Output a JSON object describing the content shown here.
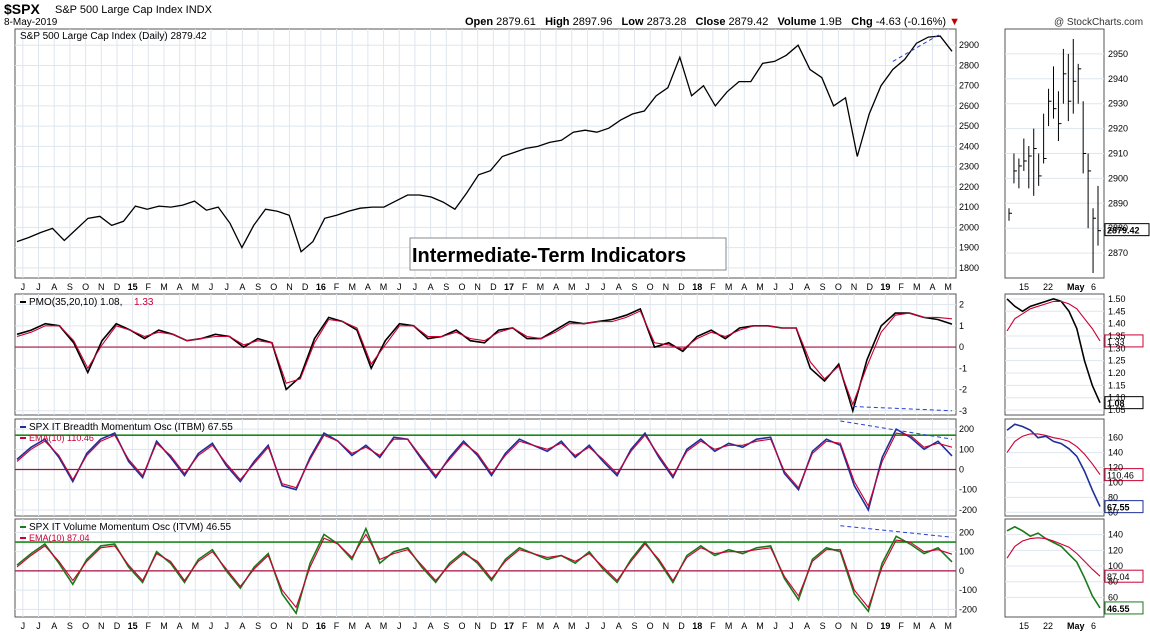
{
  "header": {
    "symbol": "$SPX",
    "name": "S&P 500 Large Cap Index INDX",
    "date": "8-May-2019",
    "brand": "@ StockCharts.com",
    "quote": {
      "open_label": "Open",
      "open": "2879.61",
      "high_label": "High",
      "high": "2897.96",
      "low_label": "Low",
      "low": "2873.28",
      "close_label": "Close",
      "close": "2879.42",
      "volume_label": "Volume",
      "volume": "1.9B",
      "chg_label": "Chg",
      "chg": "-4.63 (-0.16%)"
    }
  },
  "annotation": "Intermediate-Term Indicators",
  "colors": {
    "price": "#000000",
    "ema": "#cc0033",
    "itbm": "#1f2f9a",
    "itvm": "#1a7a1a",
    "zero_line": "#aa1040",
    "upper_line": "#1a8a1a",
    "divergence": "#2a3fd0",
    "grid": "#dfe6ee"
  },
  "chart_data": [
    {
      "type": "line",
      "title": "S&P 500 Large Cap Index (Daily) 2879.42",
      "x_labels": [
        "J",
        "J",
        "A",
        "S",
        "O",
        "N",
        "D",
        "15",
        "F",
        "M",
        "A",
        "M",
        "J",
        "J",
        "A",
        "S",
        "O",
        "N",
        "D",
        "16",
        "F",
        "M",
        "A",
        "M",
        "J",
        "J",
        "A",
        "S",
        "O",
        "N",
        "D",
        "17",
        "F",
        "M",
        "A",
        "M",
        "J",
        "J",
        "A",
        "S",
        "O",
        "N",
        "D",
        "18",
        "F",
        "M",
        "A",
        "M",
        "J",
        "J",
        "A",
        "S",
        "O",
        "N",
        "D",
        "19",
        "F",
        "M",
        "A",
        "M"
      ],
      "ylim": [
        1750,
        2980
      ],
      "yticks": [
        1800,
        1900,
        2000,
        2100,
        2200,
        2300,
        2400,
        2500,
        2600,
        2700,
        2800,
        2900
      ],
      "series": [
        {
          "values": [
            1930,
            1950,
            1975,
            1995,
            1935,
            1990,
            2045,
            2055,
            2010,
            2030,
            2105,
            2090,
            2105,
            2100,
            2110,
            2130,
            2085,
            2100,
            2020,
            1900,
            2010,
            2090,
            2080,
            2060,
            1880,
            1930,
            2045,
            2060,
            2080,
            2095,
            2100,
            2100,
            2130,
            2160,
            2160,
            2150,
            2125,
            2090,
            2170,
            2260,
            2280,
            2350,
            2370,
            2390,
            2400,
            2420,
            2430,
            2470,
            2480,
            2470,
            2490,
            2530,
            2560,
            2575,
            2650,
            2690,
            2840,
            2650,
            2700,
            2600,
            2670,
            2720,
            2720,
            2810,
            2820,
            2850,
            2900,
            2780,
            2740,
            2600,
            2640,
            2350,
            2560,
            2700,
            2780,
            2830,
            2910,
            2940,
            2945,
            2870
          ]
        }
      ]
    },
    {
      "type": "line",
      "title": "S&P 500 Large Cap Index (Daily), last month",
      "x_labels": [
        "15",
        "22",
        "May",
        "6"
      ],
      "ylim": [
        2860,
        2960
      ],
      "yticks": [
        2870,
        2880,
        2890,
        2900,
        2910,
        2920,
        2930,
        2940,
        2950
      ],
      "last_value": "2879.42",
      "bars": [
        {
          "h": 2888,
          "l": 2883,
          "c": 2886
        },
        {
          "h": 2910,
          "l": 2898,
          "c": 2903
        },
        {
          "h": 2908,
          "l": 2896,
          "c": 2905
        },
        {
          "h": 2916,
          "l": 2903,
          "c": 2907
        },
        {
          "h": 2913,
          "l": 2896,
          "c": 2909
        },
        {
          "h": 2920,
          "l": 2893,
          "c": 2912
        },
        {
          "h": 2910,
          "l": 2897,
          "c": 2901
        },
        {
          "h": 2926,
          "l": 2906,
          "c": 2908
        },
        {
          "h": 2936,
          "l": 2921,
          "c": 2931
        },
        {
          "h": 2945,
          "l": 2924,
          "c": 2928
        },
        {
          "h": 2935,
          "l": 2915,
          "c": 2922
        },
        {
          "h": 2952,
          "l": 2930,
          "c": 2942
        },
        {
          "h": 2950,
          "l": 2923,
          "c": 2931
        },
        {
          "h": 2956,
          "l": 2926,
          "c": 2939
        },
        {
          "h": 2946,
          "l": 2930,
          "c": 2944
        },
        {
          "h": 2931,
          "l": 2902,
          "c": 2910
        },
        {
          "h": 2910,
          "l": 2880,
          "c": 2903
        },
        {
          "h": 2888,
          "l": 2862,
          "c": 2884
        },
        {
          "h": 2897,
          "l": 2873,
          "c": 2879
        }
      ]
    },
    {
      "type": "line",
      "title": "PMO(35,20,10) 1.08, 1.33",
      "label_main": "PMO(35,20,10) 1.08,",
      "label_sub": "1.33",
      "ylim": [
        -3.2,
        2.5
      ],
      "yticks": [
        -3,
        -2,
        -1,
        0,
        1,
        2
      ],
      "series": [
        {
          "values": [
            0.6,
            0.8,
            1.1,
            1.0,
            0.2,
            -1.2,
            0.3,
            1.1,
            0.8,
            0.4,
            0.8,
            0.6,
            0.3,
            0.4,
            0.6,
            0.5,
            0.0,
            0.4,
            0.2,
            -2.0,
            -1.4,
            0.4,
            1.4,
            1.2,
            0.8,
            -1.0,
            0.3,
            1.1,
            1.0,
            0.4,
            0.5,
            0.8,
            0.3,
            0.2,
            0.8,
            0.9,
            0.4,
            0.4,
            0.8,
            1.2,
            1.1,
            1.2,
            1.3,
            1.5,
            1.8,
            0.0,
            0.2,
            -0.2,
            0.5,
            0.8,
            0.4,
            0.9,
            1.0,
            1.0,
            0.9,
            0.9,
            -1.0,
            -1.6,
            -0.8,
            -3.0,
            -0.6,
            1.0,
            1.6,
            1.6,
            1.4,
            1.3,
            1.08
          ]
        },
        {
          "values": [
            0.5,
            0.7,
            1.0,
            1.0,
            0.3,
            -1.0,
            0.1,
            1.0,
            0.8,
            0.5,
            0.7,
            0.6,
            0.3,
            0.4,
            0.5,
            0.5,
            0.1,
            0.3,
            0.2,
            -1.7,
            -1.5,
            0.2,
            1.3,
            1.2,
            0.9,
            -0.8,
            0.1,
            1.0,
            1.0,
            0.5,
            0.5,
            0.7,
            0.4,
            0.3,
            0.7,
            0.9,
            0.5,
            0.4,
            0.7,
            1.1,
            1.1,
            1.2,
            1.2,
            1.4,
            1.7,
            0.2,
            0.1,
            -0.1,
            0.4,
            0.7,
            0.5,
            0.8,
            1.0,
            1.0,
            0.9,
            0.9,
            -0.7,
            -1.5,
            -0.9,
            -2.7,
            -0.9,
            0.7,
            1.5,
            1.6,
            1.4,
            1.4,
            1.33
          ]
        }
      ],
      "last_values": [
        "1.33",
        "1.08"
      ],
      "right_yticks": [
        1.05,
        1.1,
        1.15,
        1.2,
        1.25,
        1.3,
        1.35,
        1.4,
        1.45,
        1.5
      ],
      "right_ylim": [
        1.03,
        1.52
      ],
      "right_series": [
        {
          "values": [
            1.5,
            1.47,
            1.45,
            1.47,
            1.48,
            1.49,
            1.5,
            1.49,
            1.45,
            1.38,
            1.25,
            1.15,
            1.08
          ]
        },
        {
          "values": [
            1.37,
            1.42,
            1.44,
            1.46,
            1.47,
            1.48,
            1.49,
            1.49,
            1.48,
            1.46,
            1.42,
            1.38,
            1.33
          ]
        }
      ]
    },
    {
      "type": "line",
      "title": "SPX IT Breadth Momentum Osc (ITBM) 67.55",
      "label_main": "SPX IT Breadth Momentum Osc (ITBM) 67.55",
      "label_sub": "EMA(10) 110.46",
      "ylim": [
        -230,
        250
      ],
      "yticks": [
        -200,
        -100,
        0,
        100,
        200
      ],
      "upper_line": 170,
      "series": [
        {
          "values": [
            50,
            110,
            150,
            60,
            -60,
            80,
            150,
            180,
            40,
            -40,
            140,
            60,
            -30,
            80,
            130,
            20,
            -60,
            40,
            120,
            -80,
            -100,
            60,
            180,
            140,
            70,
            120,
            60,
            160,
            150,
            50,
            -40,
            60,
            140,
            70,
            -30,
            80,
            150,
            120,
            90,
            140,
            60,
            120,
            40,
            -30,
            100,
            180,
            60,
            -40,
            100,
            150,
            90,
            130,
            110,
            150,
            160,
            -20,
            -100,
            90,
            150,
            120,
            -80,
            -200,
            60,
            200,
            160,
            100,
            140,
            67.55
          ]
        },
        {
          "values": [
            40,
            100,
            140,
            70,
            -50,
            70,
            140,
            170,
            50,
            -30,
            130,
            70,
            -20,
            70,
            120,
            30,
            -50,
            30,
            110,
            -70,
            -90,
            50,
            170,
            140,
            80,
            110,
            70,
            150,
            150,
            60,
            -30,
            50,
            130,
            80,
            -20,
            70,
            140,
            120,
            100,
            130,
            70,
            110,
            50,
            -20,
            90,
            170,
            70,
            -30,
            90,
            140,
            100,
            120,
            120,
            140,
            150,
            -10,
            -90,
            80,
            140,
            130,
            -60,
            -180,
            40,
            180,
            170,
            110,
            130,
            110.46
          ]
        }
      ],
      "last_values": [
        "110.46",
        "67.55"
      ],
      "right_yticks": [
        60,
        80,
        100,
        120,
        140,
        160
      ],
      "right_ylim": [
        55,
        185
      ],
      "right_series": [
        {
          "values": [
            170,
            178,
            175,
            170,
            160,
            162,
            155,
            152,
            145,
            135,
            115,
            90,
            67.55
          ]
        },
        {
          "values": [
            140,
            155,
            162,
            165,
            165,
            163,
            160,
            158,
            155,
            148,
            138,
            125,
            110.46
          ]
        }
      ]
    },
    {
      "type": "line",
      "title": "SPX IT Volume Momentum Osc (ITVM) 46.55",
      "label_main": "SPX IT Volume Momentum Osc (ITVM) 46.55",
      "label_sub": "EMA(10) 87.04",
      "ylim": [
        -240,
        270
      ],
      "yticks": [
        -200,
        -100,
        0,
        100,
        200
      ],
      "upper_line": 150,
      "series": [
        {
          "values": [
            30,
            90,
            140,
            40,
            -70,
            60,
            130,
            140,
            20,
            -60,
            100,
            40,
            -60,
            60,
            110,
            0,
            -90,
            20,
            90,
            -120,
            -220,
            40,
            190,
            140,
            60,
            220,
            40,
            100,
            120,
            20,
            -60,
            40,
            100,
            40,
            -50,
            60,
            120,
            90,
            60,
            80,
            40,
            100,
            10,
            -60,
            60,
            150,
            50,
            -60,
            80,
            130,
            80,
            110,
            90,
            120,
            130,
            -40,
            -150,
            60,
            120,
            100,
            -120,
            -210,
            40,
            180,
            140,
            90,
            120,
            46.55
          ]
        },
        {
          "values": [
            20,
            80,
            130,
            50,
            -50,
            50,
            120,
            130,
            30,
            -50,
            90,
            50,
            -50,
            50,
            100,
            10,
            -80,
            10,
            80,
            -100,
            -190,
            20,
            170,
            140,
            70,
            190,
            60,
            90,
            110,
            30,
            -50,
            30,
            90,
            50,
            -40,
            50,
            110,
            90,
            70,
            80,
            50,
            90,
            20,
            -50,
            50,
            140,
            60,
            -50,
            70,
            120,
            90,
            100,
            100,
            110,
            120,
            -30,
            -130,
            50,
            110,
            110,
            -100,
            -190,
            20,
            160,
            150,
            100,
            110,
            87.04
          ]
        }
      ],
      "last_values": [
        "87.04",
        "46.55"
      ],
      "right_yticks": [
        60,
        80,
        100,
        120,
        140
      ],
      "right_ylim": [
        35,
        160
      ],
      "right_series": [
        {
          "values": [
            145,
            150,
            145,
            138,
            142,
            135,
            130,
            125,
            115,
            105,
            85,
            62,
            46.55
          ]
        },
        {
          "values": [
            110,
            125,
            132,
            135,
            136,
            135,
            132,
            128,
            124,
            116,
            106,
            96,
            87.04
          ]
        }
      ]
    }
  ]
}
